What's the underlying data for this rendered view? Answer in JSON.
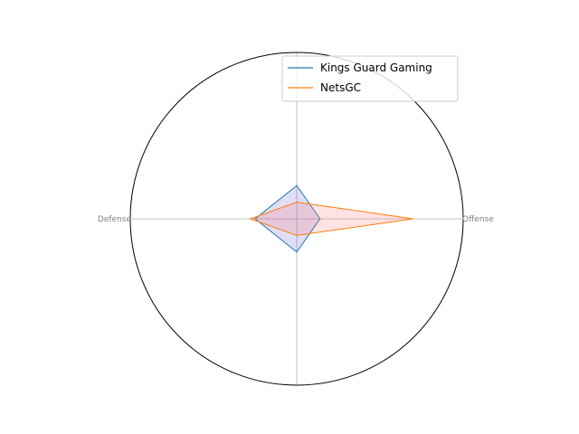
{
  "chart_data": {
    "type": "radar",
    "axes": [
      "Offense",
      "",
      "Defense",
      ""
    ],
    "rmax": 100,
    "grid": true,
    "legend_position": "upper-right",
    "series": [
      {
        "name": "Kings Guard Gaming",
        "values": [
          14,
          20,
          25,
          20
        ],
        "color": "#1f77b4"
      },
      {
        "name": "NetsGC",
        "values": [
          70,
          10,
          28,
          10
        ],
        "color": "#ff7f0e"
      }
    ]
  }
}
